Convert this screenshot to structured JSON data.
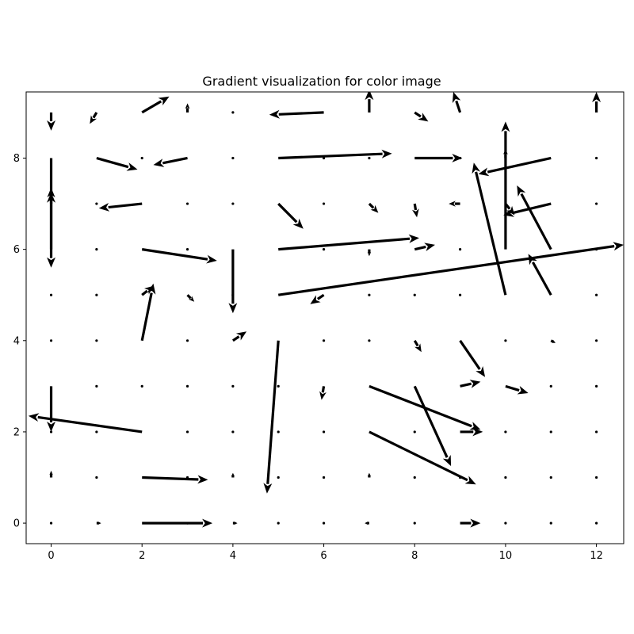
{
  "chart_data": {
    "type": "quiver",
    "title": "Gradient visualization for color image",
    "xlabel": "",
    "ylabel": "",
    "xlim": [
      -0.55,
      12.6
    ],
    "ylim": [
      -0.45,
      9.45
    ],
    "xticks": [
      "0",
      "2",
      "4",
      "6",
      "8",
      "10",
      "12"
    ],
    "yticks": [
      "0",
      "2",
      "4",
      "6",
      "8"
    ],
    "grid": false,
    "arrow_color": "#000000",
    "vectors": [
      {
        "x": 0,
        "y": 9,
        "u": 0,
        "v": -0.4
      },
      {
        "x": 1,
        "y": 9,
        "u": -0.15,
        "v": -0.25
      },
      {
        "x": 2,
        "y": 9,
        "u": 0.6,
        "v": 0.35
      },
      {
        "x": 3,
        "y": 9,
        "u": 0,
        "v": 0.2
      },
      {
        "x": 4,
        "y": 9,
        "u": 0,
        "v": 0
      },
      {
        "x": 6,
        "y": 9,
        "u": -1.2,
        "v": -0.05
      },
      {
        "x": 7,
        "y": 9,
        "u": 0,
        "v": 0.5
      },
      {
        "x": 8,
        "y": 9,
        "u": 0.3,
        "v": -0.2
      },
      {
        "x": 9,
        "y": 9,
        "u": -0.15,
        "v": 0.45
      },
      {
        "x": 12,
        "y": 9,
        "u": 0,
        "v": 0.45
      },
      {
        "x": 0,
        "y": 8,
        "u": 0,
        "v": -2.4
      },
      {
        "x": 1,
        "y": 8,
        "u": 0.9,
        "v": -0.25
      },
      {
        "x": 2,
        "y": 8,
        "u": 0,
        "v": 0
      },
      {
        "x": 3,
        "y": 8,
        "u": -0.75,
        "v": -0.15
      },
      {
        "x": 4,
        "y": 8,
        "u": 0,
        "v": 0
      },
      {
        "x": 5,
        "y": 8,
        "u": 2.5,
        "v": 0.1
      },
      {
        "x": 6,
        "y": 8,
        "u": 0,
        "v": 0
      },
      {
        "x": 7,
        "y": 8,
        "u": 0,
        "v": 0
      },
      {
        "x": 8,
        "y": 8,
        "u": 1.05,
        "v": 0
      },
      {
        "x": 9,
        "y": 8,
        "u": 0,
        "v": 0
      },
      {
        "x": 10,
        "y": 8,
        "u": 0,
        "v": 0.2
      },
      {
        "x": 11,
        "y": 8,
        "u": -1.6,
        "v": -0.35
      },
      {
        "x": 12,
        "y": 8,
        "u": 0,
        "v": 0
      },
      {
        "x": 0,
        "y": 7,
        "u": 0,
        "v": 0.35
      },
      {
        "x": 1,
        "y": 7,
        "u": 0,
        "v": 0
      },
      {
        "x": 2,
        "y": 7,
        "u": -0.95,
        "v": -0.1
      },
      {
        "x": 3,
        "y": 7,
        "u": 0,
        "v": 0
      },
      {
        "x": 4,
        "y": 7,
        "u": 0,
        "v": 0
      },
      {
        "x": 5,
        "y": 7,
        "u": 0.55,
        "v": -0.55
      },
      {
        "x": 6,
        "y": 7,
        "u": 0,
        "v": 0
      },
      {
        "x": 7,
        "y": 7,
        "u": 0.2,
        "v": -0.2
      },
      {
        "x": 8,
        "y": 7,
        "u": 0.05,
        "v": -0.3
      },
      {
        "x": 9,
        "y": 7,
        "u": -0.25,
        "v": 0
      },
      {
        "x": 10,
        "y": 7,
        "u": 0.2,
        "v": -0.25
      },
      {
        "x": 11,
        "y": 7,
        "u": -1.05,
        "v": -0.25
      },
      {
        "x": 12,
        "y": 7,
        "u": 0,
        "v": 0
      },
      {
        "x": 0,
        "y": 6,
        "u": 0,
        "v": 1.25
      },
      {
        "x": 1,
        "y": 6,
        "u": 0,
        "v": 0
      },
      {
        "x": 2,
        "y": 6,
        "u": 1.65,
        "v": -0.25
      },
      {
        "x": 3,
        "y": 6,
        "u": 0,
        "v": 0
      },
      {
        "x": 4,
        "y": 6,
        "u": 0,
        "v": -1.4
      },
      {
        "x": 5,
        "y": 6,
        "u": 3.1,
        "v": 0.25
      },
      {
        "x": 6,
        "y": 6,
        "u": 0,
        "v": 0
      },
      {
        "x": 7,
        "y": 6,
        "u": 0,
        "v": -0.15
      },
      {
        "x": 8,
        "y": 6,
        "u": 0.45,
        "v": 0.1
      },
      {
        "x": 9,
        "y": 6,
        "u": 0,
        "v": 0
      },
      {
        "x": 10,
        "y": 6,
        "u": 0,
        "v": 2.8
      },
      {
        "x": 11,
        "y": 6,
        "u": -0.75,
        "v": 1.4
      },
      {
        "x": 12,
        "y": 6,
        "u": 0,
        "v": 0
      },
      {
        "x": 0,
        "y": 5,
        "u": 0,
        "v": 0
      },
      {
        "x": 1,
        "y": 5,
        "u": 0,
        "v": 0
      },
      {
        "x": 2,
        "y": 5,
        "u": 0.25,
        "v": 0.2
      },
      {
        "x": 3,
        "y": 5,
        "u": 0.15,
        "v": -0.15
      },
      {
        "x": 4,
        "y": 5,
        "u": 0,
        "v": 0
      },
      {
        "x": 5,
        "y": 5,
        "u": 7.6,
        "v": 1.1
      },
      {
        "x": 6,
        "y": 5,
        "u": -0.3,
        "v": -0.2
      },
      {
        "x": 7,
        "y": 5,
        "u": 0,
        "v": 0
      },
      {
        "x": 8,
        "y": 5,
        "u": 0,
        "v": 0
      },
      {
        "x": 9,
        "y": 5,
        "u": 0,
        "v": 0
      },
      {
        "x": 10,
        "y": 5,
        "u": -0.7,
        "v": 2.9
      },
      {
        "x": 11,
        "y": 5,
        "u": -0.5,
        "v": 0.9
      },
      {
        "x": 12,
        "y": 5,
        "u": 0,
        "v": 0
      },
      {
        "x": 0,
        "y": 4,
        "u": 0,
        "v": 0
      },
      {
        "x": 1,
        "y": 4,
        "u": 0,
        "v": 0
      },
      {
        "x": 2,
        "y": 4,
        "u": 0.25,
        "v": 1.25
      },
      {
        "x": 3,
        "y": 4,
        "u": 0,
        "v": 0
      },
      {
        "x": 4,
        "y": 4,
        "u": 0.3,
        "v": 0.2
      },
      {
        "x": 5,
        "y": 4,
        "u": -0.25,
        "v": -3.35
      },
      {
        "x": 6,
        "y": 4,
        "u": 0,
        "v": 0
      },
      {
        "x": 7,
        "y": 4,
        "u": 0,
        "v": 0
      },
      {
        "x": 8,
        "y": 4,
        "u": 0.15,
        "v": -0.25
      },
      {
        "x": 9,
        "y": 4,
        "u": 0.55,
        "v": -0.8
      },
      {
        "x": 10,
        "y": 4,
        "u": 0,
        "v": 0
      },
      {
        "x": 11,
        "y": 4,
        "u": 0.1,
        "v": -0.05
      },
      {
        "x": 12,
        "y": 4,
        "u": 0,
        "v": 0
      },
      {
        "x": 0,
        "y": 3,
        "u": 0,
        "v": -1.0
      },
      {
        "x": 1,
        "y": 3,
        "u": 0,
        "v": 0
      },
      {
        "x": 2,
        "y": 3,
        "u": 0,
        "v": 0
      },
      {
        "x": 3,
        "y": 3,
        "u": 0,
        "v": 0
      },
      {
        "x": 4,
        "y": 3,
        "u": 0,
        "v": 0
      },
      {
        "x": 5,
        "y": 3,
        "u": 0,
        "v": 0
      },
      {
        "x": 6,
        "y": 3,
        "u": -0.05,
        "v": -0.3
      },
      {
        "x": 7,
        "y": 3,
        "u": 2.45,
        "v": -0.95
      },
      {
        "x": 8,
        "y": 3,
        "u": 0.8,
        "v": -1.75
      },
      {
        "x": 9,
        "y": 3,
        "u": 0.45,
        "v": 0.1
      },
      {
        "x": 10,
        "y": 3,
        "u": 0.5,
        "v": -0.15
      },
      {
        "x": 11,
        "y": 3,
        "u": 0,
        "v": 0
      },
      {
        "x": 12,
        "y": 3,
        "u": 0,
        "v": 0
      },
      {
        "x": 0,
        "y": 2,
        "u": 0,
        "v": 0
      },
      {
        "x": 1,
        "y": 2,
        "u": 0,
        "v": 0
      },
      {
        "x": 2,
        "y": 2,
        "u": -2.5,
        "v": 0.35
      },
      {
        "x": 3,
        "y": 2,
        "u": 0,
        "v": 0
      },
      {
        "x": 4,
        "y": 2,
        "u": 0,
        "v": 0
      },
      {
        "x": 5,
        "y": 2,
        "u": 0,
        "v": 0
      },
      {
        "x": 6,
        "y": 2,
        "u": 0,
        "v": 0
      },
      {
        "x": 7,
        "y": 2,
        "u": 2.35,
        "v": -1.15
      },
      {
        "x": 8,
        "y": 2,
        "u": 0,
        "v": 0
      },
      {
        "x": 9,
        "y": 2,
        "u": 0.5,
        "v": 0
      },
      {
        "x": 10,
        "y": 2,
        "u": 0,
        "v": 0
      },
      {
        "x": 11,
        "y": 2,
        "u": 0,
        "v": 0
      },
      {
        "x": 12,
        "y": 2,
        "u": 0,
        "v": 0
      },
      {
        "x": 0,
        "y": 1,
        "u": 0,
        "v": 0.15
      },
      {
        "x": 1,
        "y": 1,
        "u": 0,
        "v": 0
      },
      {
        "x": 2,
        "y": 1,
        "u": 1.45,
        "v": -0.05
      },
      {
        "x": 3,
        "y": 1,
        "u": 0,
        "v": 0
      },
      {
        "x": 4,
        "y": 1,
        "u": 0,
        "v": 0.1
      },
      {
        "x": 5,
        "y": 1,
        "u": 0,
        "v": 0
      },
      {
        "x": 6,
        "y": 1,
        "u": 0,
        "v": 0
      },
      {
        "x": 7,
        "y": 1,
        "u": 0,
        "v": 0.1
      },
      {
        "x": 8,
        "y": 1,
        "u": 0,
        "v": 0
      },
      {
        "x": 9,
        "y": 1,
        "u": 0,
        "v": 0
      },
      {
        "x": 10,
        "y": 1,
        "u": 0,
        "v": 0
      },
      {
        "x": 11,
        "y": 1,
        "u": 0,
        "v": 0
      },
      {
        "x": 12,
        "y": 1,
        "u": 0,
        "v": 0
      },
      {
        "x": 0,
        "y": 0,
        "u": 0,
        "v": 0
      },
      {
        "x": 1,
        "y": 0,
        "u": 0.1,
        "v": 0
      },
      {
        "x": 2,
        "y": 0,
        "u": 1.55,
        "v": 0
      },
      {
        "x": 3,
        "y": 0,
        "u": 0,
        "v": 0
      },
      {
        "x": 4,
        "y": 0,
        "u": 0.1,
        "v": 0
      },
      {
        "x": 5,
        "y": 0,
        "u": 0,
        "v": 0
      },
      {
        "x": 6,
        "y": 0,
        "u": 0,
        "v": 0
      },
      {
        "x": 7,
        "y": 0,
        "u": -0.1,
        "v": 0
      },
      {
        "x": 8,
        "y": 0,
        "u": 0,
        "v": 0
      },
      {
        "x": 9,
        "y": 0,
        "u": 0.45,
        "v": 0
      },
      {
        "x": 10,
        "y": 0,
        "u": 0,
        "v": 0
      },
      {
        "x": 11,
        "y": 0,
        "u": 0,
        "v": 0
      },
      {
        "x": 12,
        "y": 0,
        "u": 0,
        "v": 0
      }
    ]
  }
}
